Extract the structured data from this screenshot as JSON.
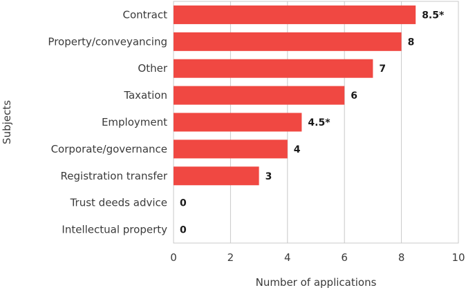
{
  "chart_data": {
    "type": "bar",
    "orientation": "horizontal",
    "categories": [
      "Contract",
      "Property/conveyancing",
      "Other",
      "Taxation",
      "Employment",
      "Corporate/governance",
      "Registration transfer",
      "Trust deeds advice",
      "Intellectual property"
    ],
    "values": [
      8.5,
      8,
      7,
      6,
      4.5,
      4,
      3,
      0,
      0
    ],
    "value_labels": [
      "8.5*",
      "8",
      "7",
      "6",
      "4.5*",
      "4",
      "3",
      "0",
      "0"
    ],
    "xlabel": "Number of applications",
    "ylabel": "Subjects",
    "xlim": [
      0,
      10
    ],
    "xticks": [
      "0",
      "2",
      "4",
      "6",
      "8",
      "10"
    ],
    "grid": true,
    "bar_color": "#f04842"
  }
}
